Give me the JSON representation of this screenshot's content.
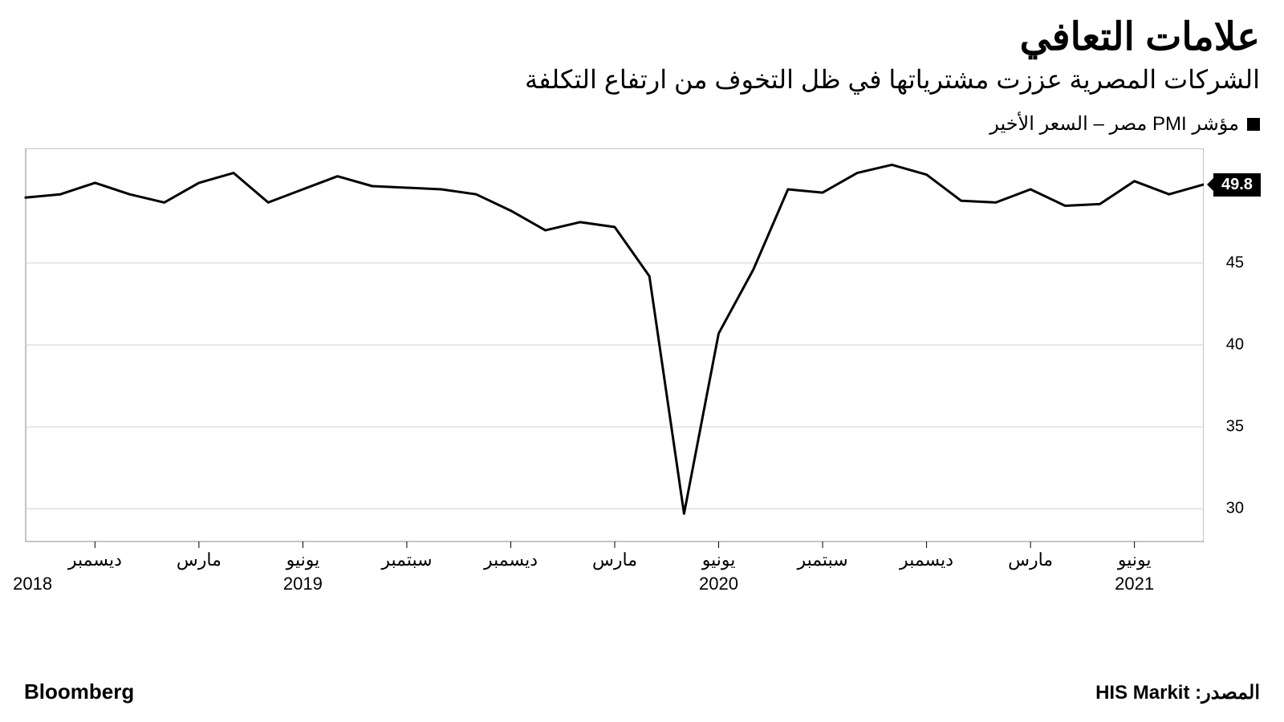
{
  "title": "علامات التعافي",
  "subtitle": "الشركات المصرية عززت مشترياتها في ظل التخوف من ارتفاع التكلفة",
  "legend_text": "مؤشر PMI مصر – السعر الأخير",
  "source_brand": "Bloomberg",
  "source_attribution_label": "المصدر:",
  "source_attribution_value": "HIS Markit",
  "chart": {
    "type": "line",
    "line_color": "#000000",
    "line_width": 3,
    "background_color": "#ffffff",
    "grid_color": "#cfcfcf",
    "border_color": "#888888",
    "ylim": [
      28,
      52
    ],
    "ytick_values": [
      30,
      35,
      40,
      45
    ],
    "end_value_label": "49.8",
    "x_labels_months": [
      {
        "idx": 2,
        "label": "ديسمبر"
      },
      {
        "idx": 5,
        "label": "مارس"
      },
      {
        "idx": 8,
        "label": "يونيو"
      },
      {
        "idx": 11,
        "label": "سبتمبر"
      },
      {
        "idx": 14,
        "label": "ديسمبر"
      },
      {
        "idx": 17,
        "label": "مارس"
      },
      {
        "idx": 20,
        "label": "يونيو"
      },
      {
        "idx": 23,
        "label": "سبتمبر"
      },
      {
        "idx": 26,
        "label": "ديسمبر"
      },
      {
        "idx": 29,
        "label": "مارس"
      },
      {
        "idx": 32,
        "label": "يونيو"
      }
    ],
    "x_labels_years": [
      {
        "idx": 0.2,
        "label": "2018"
      },
      {
        "idx": 8,
        "label": "2019"
      },
      {
        "idx": 20,
        "label": "2020"
      },
      {
        "idx": 32,
        "label": "2021"
      }
    ],
    "values": [
      49.0,
      49.2,
      49.9,
      49.2,
      48.7,
      49.9,
      50.5,
      48.7,
      49.5,
      50.3,
      49.7,
      49.6,
      49.5,
      49.2,
      48.2,
      47.0,
      47.5,
      47.2,
      44.2,
      29.7,
      40.7,
      44.6,
      49.5,
      49.3,
      50.5,
      51.0,
      50.4,
      48.8,
      48.7,
      49.5,
      48.5,
      48.6,
      50.0,
      49.2,
      49.8
    ]
  }
}
